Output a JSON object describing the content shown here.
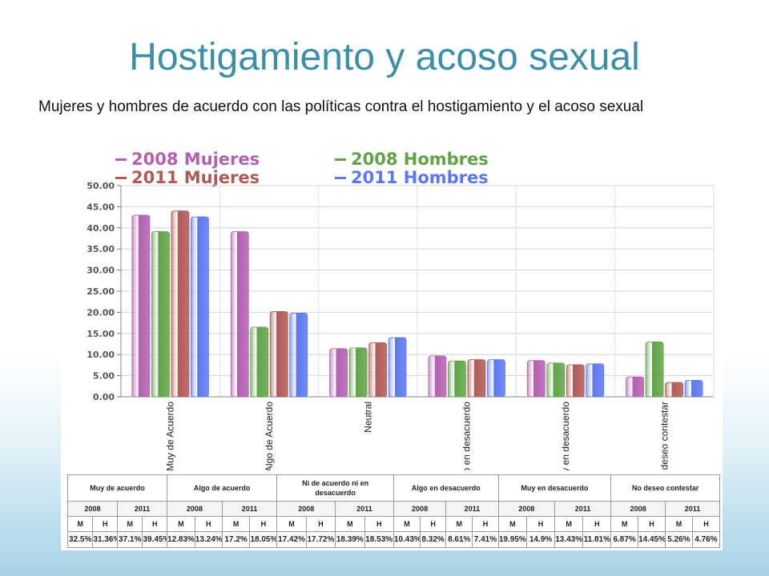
{
  "slide": {
    "title": "Hostigamiento y acoso sexual",
    "subtitle": "Mujeres y hombres de acuerdo con las políticas contra el hostigamiento y el acoso sexual"
  },
  "chart_data": {
    "type": "bar",
    "title": "",
    "xlabel": "",
    "ylabel": "",
    "ylim": [
      0,
      50
    ],
    "yticks": [
      "0.00",
      "5.00",
      "10.00",
      "15.00",
      "20.00",
      "25.00",
      "30.00",
      "35.00",
      "40.00",
      "45.00",
      "50.00"
    ],
    "grid": true,
    "legend_position": "top",
    "categories": [
      "Muy de Acuerdo",
      "Algo de Acuerdo",
      "Neutral",
      "Algo en desacuerdo",
      "Muy en desacuerdo",
      "No deseo contestar"
    ],
    "series": [
      {
        "name": "2008 Mujeres",
        "color": "#b45fb0",
        "values": [
          43.0,
          39.1,
          11.4,
          9.7,
          8.6,
          4.7
        ]
      },
      {
        "name": "2008 Hombres",
        "color": "#5fa346",
        "values": [
          39.1,
          16.5,
          11.6,
          8.5,
          8.0,
          13.0
        ]
      },
      {
        "name": "2011 Mujeres",
        "color": "#b05a56",
        "values": [
          44.0,
          20.2,
          12.8,
          8.8,
          7.6,
          3.4
        ]
      },
      {
        "name": "2011 Hombres",
        "color": "#5a78f0",
        "values": [
          42.6,
          19.8,
          14.0,
          8.8,
          7.8,
          3.9
        ]
      }
    ]
  },
  "table": {
    "categories": [
      {
        "label": "Muy de acuerdo"
      },
      {
        "label": "Algo de acuerdo"
      },
      {
        "label": "Ni de acuerdo ni en desacuerdo"
      },
      {
        "label": "Algo en desacuerdo"
      },
      {
        "label": "Muy en desacuerdo"
      },
      {
        "label": "No deseo contestar"
      }
    ],
    "years": [
      "2008",
      "2011"
    ],
    "sex_labels": [
      "M",
      "H"
    ],
    "values": [
      [
        "32.5%",
        "31.36%",
        "37.1%",
        "39.45%"
      ],
      [
        "12.83%",
        "13.24%",
        "17.2%",
        "18.05%"
      ],
      [
        "17.42%",
        "17.72%",
        "18.39%",
        "18.53%"
      ],
      [
        "10.43%",
        "8.32%",
        "8.61%",
        "7.41%"
      ],
      [
        "19.95%",
        "14.9%",
        "13.43%",
        "11.81%"
      ],
      [
        "6.87%",
        "14.45%",
        "5.26%",
        "4.76%"
      ]
    ]
  }
}
